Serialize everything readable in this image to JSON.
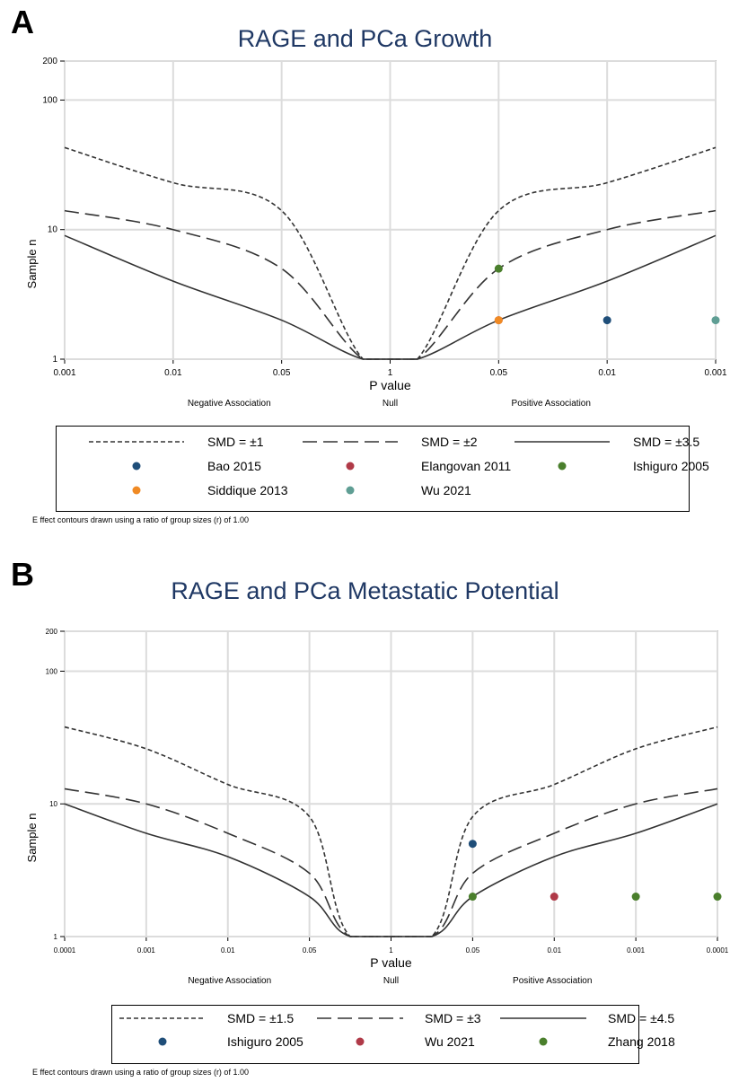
{
  "panels": [
    {
      "letter": "A",
      "title": "RAGE and PCa Growth",
      "footnote": "E ffect contours drawn using a ratio of group sizes (r) of 1.00"
    },
    {
      "letter": "B",
      "title": "RAGE and PCa Metastatic Potential",
      "footnote": "E ffect contours drawn using a ratio of group sizes (r) of 1.00"
    }
  ],
  "chart_data": [
    {
      "type": "line",
      "title": "RAGE and PCa Growth",
      "xlabel": "P value",
      "ylabel": "Sample n",
      "y_scale": "log",
      "x_ticks": [
        "0.001",
        "0.01",
        "0.05",
        "1",
        "0.05",
        "0.01",
        "0.001"
      ],
      "y_ticks": [
        "1",
        "10",
        "100",
        "200"
      ],
      "region_labels": [
        "Negative Association",
        "Null",
        "Positive Association"
      ],
      "grid": true,
      "legend_position": "bottom",
      "contour_series": [
        {
          "name": "SMD = ±1",
          "style": "short-dash",
          "x": [
            "0.001",
            "0.01",
            "0.05",
            "1",
            "0.05",
            "0.01",
            "0.001"
          ],
          "values": [
            43,
            23,
            14,
            1,
            14,
            23,
            43
          ]
        },
        {
          "name": "SMD = ±2",
          "style": "long-dash",
          "x": [
            "0.001",
            "0.01",
            "0.05",
            "1",
            "0.05",
            "0.01",
            "0.001"
          ],
          "values": [
            14,
            10,
            5,
            1,
            5,
            10,
            14
          ]
        },
        {
          "name": "SMD = ±3.5",
          "style": "solid",
          "x": [
            "0.001",
            "0.01",
            "0.05",
            "1",
            "0.05",
            "0.01",
            "0.001"
          ],
          "values": [
            9,
            4,
            2,
            1,
            2,
            4,
            9
          ]
        }
      ],
      "studies": [
        {
          "name": "Bao 2015",
          "color": "#1f4e79",
          "p": "0.01",
          "side": "positive",
          "n": 2
        },
        {
          "name": "Elangovan 2011",
          "color": "#b03a48",
          "p": "0.05",
          "side": "positive",
          "n": 2
        },
        {
          "name": "Ishiguro 2005",
          "color": "#4a7f2c",
          "p": "0.05",
          "side": "positive",
          "n": 5
        },
        {
          "name": "Siddique 2013",
          "color": "#f08a24",
          "p": "0.05",
          "side": "positive",
          "n": 2
        },
        {
          "name": "Wu 2021",
          "color": "#5f9e94",
          "p": "0.001",
          "side": "positive",
          "n": 2
        }
      ]
    },
    {
      "type": "line",
      "title": "RAGE and PCa Metastatic Potential",
      "xlabel": "P value",
      "ylabel": "Sample n",
      "y_scale": "log",
      "x_ticks": [
        "0.0001",
        "0.001",
        "0.01",
        "0.05",
        "1",
        "0.05",
        "0.01",
        "0.001",
        "0.0001"
      ],
      "y_ticks": [
        "1",
        "10",
        "100",
        "200"
      ],
      "region_labels": [
        "Negative Association",
        "Null",
        "Positive Association"
      ],
      "grid": true,
      "legend_position": "bottom",
      "contour_series": [
        {
          "name": "SMD = ±1.5",
          "style": "short-dash",
          "x": [
            "0.0001",
            "0.001",
            "0.01",
            "0.05",
            "1",
            "0.05",
            "0.01",
            "0.001",
            "0.0001"
          ],
          "values": [
            38,
            26,
            14,
            8,
            1,
            8,
            14,
            26,
            38
          ]
        },
        {
          "name": "SMD = ±3",
          "style": "long-dash",
          "x": [
            "0.0001",
            "0.001",
            "0.01",
            "0.05",
            "1",
            "0.05",
            "0.01",
            "0.001",
            "0.0001"
          ],
          "values": [
            13,
            10,
            6,
            3,
            1,
            3,
            6,
            10,
            13
          ]
        },
        {
          "name": "SMD = ±4.5",
          "style": "solid",
          "x": [
            "0.0001",
            "0.001",
            "0.01",
            "0.05",
            "1",
            "0.05",
            "0.01",
            "0.001",
            "0.0001"
          ],
          "values": [
            10,
            6,
            4,
            2,
            1,
            2,
            4,
            6,
            10
          ]
        }
      ],
      "studies": [
        {
          "name": "Ishiguro 2005",
          "color": "#1f4e79",
          "p": "0.05",
          "side": "positive",
          "n": 5
        },
        {
          "name": "Wu 2021",
          "color": "#b03a48",
          "p": "0.01",
          "side": "positive",
          "n": 2
        },
        {
          "name": "Zhang 2018",
          "color": "#4a7f2c",
          "p": "0.05",
          "side": "positive",
          "n": 2
        },
        {
          "name": "Zhang 2018",
          "color": "#4a7f2c",
          "p": "0.001",
          "side": "positive",
          "n": 2
        },
        {
          "name": "Zhang 2018",
          "color": "#4a7f2c",
          "p": "0.0001",
          "side": "positive",
          "n": 2
        }
      ]
    }
  ]
}
